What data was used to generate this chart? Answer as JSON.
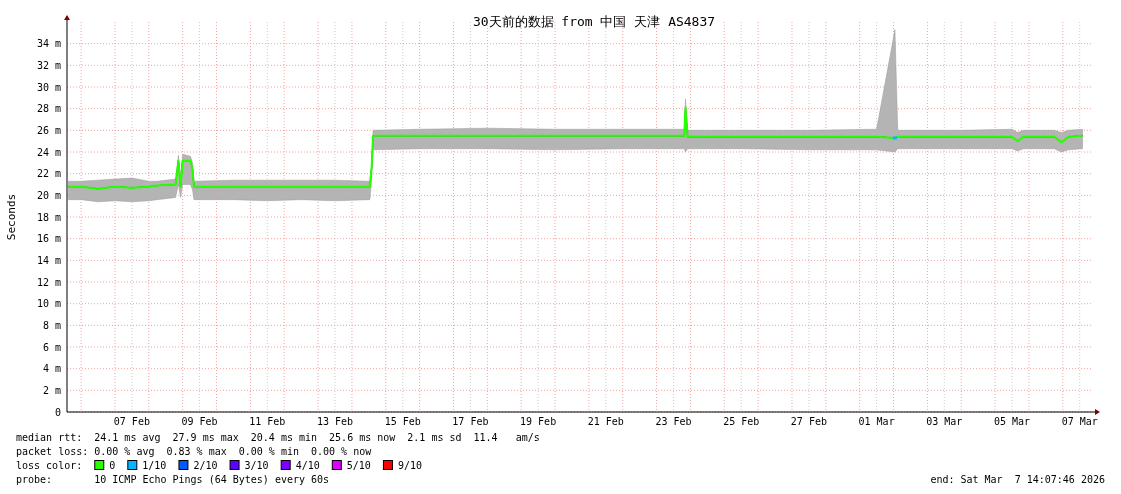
{
  "chart_data": {
    "type": "line",
    "title": "30天前的数据 from 中国 天津 AS4837",
    "ylabel": "Seconds",
    "legend_title": "loss color:",
    "legend": "bottom",
    "grid": true,
    "x": [
      "2026-02-05T15:00",
      "2026-02-06T00:00",
      "2026-02-06T12:00",
      "2026-02-07T00:00",
      "2026-02-07T12:00",
      "2026-02-08T00:00",
      "2026-02-08T06:00",
      "2026-02-08T19:00",
      "2026-02-08T21:00",
      "2026-02-08T22:30",
      "2026-02-09T00:00",
      "2026-02-09T05:30",
      "2026-02-09T07:00",
      "2026-02-09T08:00",
      "2026-02-10T12:00",
      "2026-02-11T12:00",
      "2026-02-12T12:00",
      "2026-02-13T12:00",
      "2026-02-14T12:45",
      "2026-02-14T14:00",
      "2026-02-14T15:00",
      "2026-02-16T00:00",
      "2026-02-18T00:00",
      "2026-02-20T00:00",
      "2026-02-22T00:00",
      "2026-02-23T19:40",
      "2026-02-23T20:30",
      "2026-02-23T22:00",
      "2026-02-25T12:00",
      "2026-02-27T12:00",
      "2026-03-01T12:00",
      "2026-03-02T01:00",
      "2026-03-02T03:00",
      "2026-03-04T00:00",
      "2026-03-05T12:00",
      "2026-03-05T16:00",
      "2026-03-05T20:00",
      "2026-03-06T18:00",
      "2026-03-06T23:00",
      "2026-03-07T04:00",
      "2026-03-07T14:00"
    ],
    "series": [
      {
        "name": "0",
        "color": "#26ff00",
        "values": [
          20.8,
          20.8,
          20.6,
          20.8,
          20.7,
          20.8,
          20.9,
          21.0,
          23.2,
          20.8,
          23.2,
          23.2,
          22.4,
          20.8,
          20.8,
          20.8,
          20.8,
          20.8,
          20.8,
          22.6,
          25.5,
          25.5,
          25.5,
          25.5,
          25.5,
          25.5,
          28.1,
          25.4,
          25.4,
          25.4,
          25.4,
          25.3,
          25.4,
          25.4,
          25.4,
          25.0,
          25.4,
          25.4,
          24.9,
          25.4,
          25.5
        ],
        "lower": [
          19.6,
          19.6,
          19.4,
          19.5,
          19.4,
          19.5,
          19.6,
          19.8,
          21.0,
          19.8,
          21.0,
          21.0,
          20.5,
          19.6,
          19.6,
          19.5,
          19.6,
          19.5,
          19.6,
          21.5,
          24.2,
          24.3,
          24.3,
          24.2,
          24.3,
          24.3,
          24.0,
          24.3,
          24.3,
          24.2,
          24.2,
          24.0,
          24.3,
          24.3,
          24.3,
          24.1,
          24.3,
          24.3,
          24.0,
          24.2,
          24.3
        ],
        "upper": [
          21.3,
          21.3,
          21.4,
          21.5,
          21.6,
          21.3,
          21.3,
          21.5,
          23.7,
          21.5,
          23.8,
          23.6,
          23.0,
          21.3,
          21.4,
          21.4,
          21.4,
          21.4,
          21.3,
          22.9,
          26.0,
          26.1,
          26.2,
          26.1,
          26.1,
          26.1,
          28.9,
          26.0,
          26.0,
          26.0,
          26.1,
          35.3,
          26.0,
          26.0,
          26.1,
          25.8,
          26.0,
          26.0,
          25.8,
          26.0,
          26.1
        ]
      },
      {
        "name": "1/10",
        "color": "#00b8ff",
        "marker": "square",
        "x": [
          "2026-03-02T01:00"
        ],
        "values": [
          25.3
        ]
      },
      {
        "name": "2/10",
        "color": "#0059ff",
        "values": [
          null,
          null,
          null,
          null,
          null,
          null,
          null,
          null,
          null,
          null,
          null,
          null,
          null,
          null,
          null,
          null,
          null,
          null,
          null,
          null,
          null,
          null,
          null,
          null,
          null,
          null,
          null,
          null,
          null,
          null,
          null,
          null,
          null,
          null,
          null,
          null,
          null,
          null,
          null,
          null,
          null
        ]
      },
      {
        "name": "3/10",
        "color": "#5e00ff",
        "values": [
          null,
          null,
          null,
          null,
          null,
          null,
          null,
          null,
          null,
          null,
          null,
          null,
          null,
          null,
          null,
          null,
          null,
          null,
          null,
          null,
          null,
          null,
          null,
          null,
          null,
          null,
          null,
          null,
          null,
          null,
          null,
          null,
          null,
          null,
          null,
          null,
          null,
          null,
          null,
          null,
          null
        ]
      },
      {
        "name": "4/10",
        "color": "#7e00ff",
        "values": [
          null,
          null,
          null,
          null,
          null,
          null,
          null,
          null,
          null,
          null,
          null,
          null,
          null,
          null,
          null,
          null,
          null,
          null,
          null,
          null,
          null,
          null,
          null,
          null,
          null,
          null,
          null,
          null,
          null,
          null,
          null,
          null,
          null,
          null,
          null,
          null,
          null,
          null,
          null,
          null,
          null
        ]
      },
      {
        "name": "5/10",
        "color": "#dd00ff",
        "values": [
          null,
          null,
          null,
          null,
          null,
          null,
          null,
          null,
          null,
          null,
          null,
          null,
          null,
          null,
          null,
          null,
          null,
          null,
          null,
          null,
          null,
          null,
          null,
          null,
          null,
          null,
          null,
          null,
          null,
          null,
          null,
          null,
          null,
          null,
          null,
          null,
          null,
          null,
          null,
          null,
          null
        ]
      },
      {
        "name": "9/10",
        "color": "#ff0000",
        "values": [
          null,
          null,
          null,
          null,
          null,
          null,
          null,
          null,
          null,
          null,
          null,
          null,
          null,
          null,
          null,
          null,
          null,
          null,
          null,
          null,
          null,
          null,
          null,
          null,
          null,
          null,
          null,
          null,
          null,
          null,
          null,
          null,
          null,
          null,
          null,
          null,
          null,
          null,
          null,
          null,
          null
        ]
      }
    ],
    "xlim": [
      "2026-02-05T14:00",
      "2026-03-07T20:00"
    ],
    "xticks": [
      {
        "value": "2026-02-06T00:00",
        "label": null
      },
      {
        "value": "2026-02-07T00:00",
        "label": null
      },
      {
        "value": "2026-02-07T12:00",
        "label": "07 Feb"
      },
      {
        "value": "2026-02-08T00:00",
        "label": null
      },
      {
        "value": "2026-02-09T00:00",
        "label": null
      },
      {
        "value": "2026-02-09T12:00",
        "label": "09 Feb"
      },
      {
        "value": "2026-02-10T00:00",
        "label": null
      },
      {
        "value": "2026-02-11T00:00",
        "label": null
      },
      {
        "value": "2026-02-11T12:00",
        "label": "11 Feb"
      },
      {
        "value": "2026-02-12T00:00",
        "label": null
      },
      {
        "value": "2026-02-13T00:00",
        "label": null
      },
      {
        "value": "2026-02-13T12:00",
        "label": "13 Feb"
      },
      {
        "value": "2026-02-14T00:00",
        "label": null
      },
      {
        "value": "2026-02-15T00:00",
        "label": null
      },
      {
        "value": "2026-02-15T12:00",
        "label": "15 Feb"
      },
      {
        "value": "2026-02-16T00:00",
        "label": null
      },
      {
        "value": "2026-02-17T00:00",
        "label": null
      },
      {
        "value": "2026-02-17T12:00",
        "label": "17 Feb"
      },
      {
        "value": "2026-02-18T00:00",
        "label": null
      },
      {
        "value": "2026-02-19T00:00",
        "label": null
      },
      {
        "value": "2026-02-19T12:00",
        "label": "19 Feb"
      },
      {
        "value": "2026-02-20T00:00",
        "label": null
      },
      {
        "value": "2026-02-21T00:00",
        "label": null
      },
      {
        "value": "2026-02-21T12:00",
        "label": "21 Feb"
      },
      {
        "value": "2026-02-22T00:00",
        "label": null
      },
      {
        "value": "2026-02-23T00:00",
        "label": null
      },
      {
        "value": "2026-02-23T12:00",
        "label": "23 Feb"
      },
      {
        "value": "2026-02-24T00:00",
        "label": null
      },
      {
        "value": "2026-02-25T00:00",
        "label": null
      },
      {
        "value": "2026-02-25T12:00",
        "label": "25 Feb"
      },
      {
        "value": "2026-02-26T00:00",
        "label": null
      },
      {
        "value": "2026-02-27T00:00",
        "label": null
      },
      {
        "value": "2026-02-27T12:00",
        "label": "27 Feb"
      },
      {
        "value": "2026-02-28T00:00",
        "label": null
      },
      {
        "value": "2026-03-01T00:00",
        "label": null
      },
      {
        "value": "2026-03-01T12:00",
        "label": "01 Mar"
      },
      {
        "value": "2026-03-02T00:00",
        "label": null
      },
      {
        "value": "2026-03-03T00:00",
        "label": null
      },
      {
        "value": "2026-03-03T12:00",
        "label": "03 Mar"
      },
      {
        "value": "2026-03-04T00:00",
        "label": null
      },
      {
        "value": "2026-03-05T00:00",
        "label": null
      },
      {
        "value": "2026-03-05T12:00",
        "label": "05 Mar"
      },
      {
        "value": "2026-03-06T00:00",
        "label": null
      },
      {
        "value": "2026-03-07T00:00",
        "label": null
      },
      {
        "value": "2026-03-07T12:00",
        "label": "07 Mar"
      }
    ],
    "ylim": [
      0,
      36
    ],
    "yticks": [
      0,
      {
        "value": 2,
        "label": "2 m"
      },
      {
        "value": 4,
        "label": "4 m"
      },
      {
        "value": 6,
        "label": "6 m"
      },
      {
        "value": 8,
        "label": "8 m"
      },
      {
        "value": 10,
        "label": "10 m"
      },
      {
        "value": 12,
        "label": "12 m"
      },
      {
        "value": 14,
        "label": "14 m"
      },
      {
        "value": 16,
        "label": "16 m"
      },
      {
        "value": 18,
        "label": "18 m"
      },
      {
        "value": 20,
        "label": "20 m"
      },
      {
        "value": 22,
        "label": "22 m"
      },
      {
        "value": 24,
        "label": "24 m"
      },
      {
        "value": 26,
        "label": "26 m"
      },
      {
        "value": 28,
        "label": "28 m"
      },
      {
        "value": 30,
        "label": "30 m"
      },
      {
        "value": 32,
        "label": "32 m"
      },
      {
        "value": 34,
        "label": "34 m"
      }
    ],
    "annotations": [
      "median rtt:  24.1 ms avg  27.9 ms max  20.4 ms min  25.6 ms now  2.1 ms sd  11.4   am/s",
      "packet loss: 0.00 % avg  0.83 % max  0.00 % min  0.00 % now",
      "probe:       10 ICMP Echo Pings (64 Bytes) every 60s",
      "end: Sat Mar  7 14:07:46 2026"
    ]
  }
}
